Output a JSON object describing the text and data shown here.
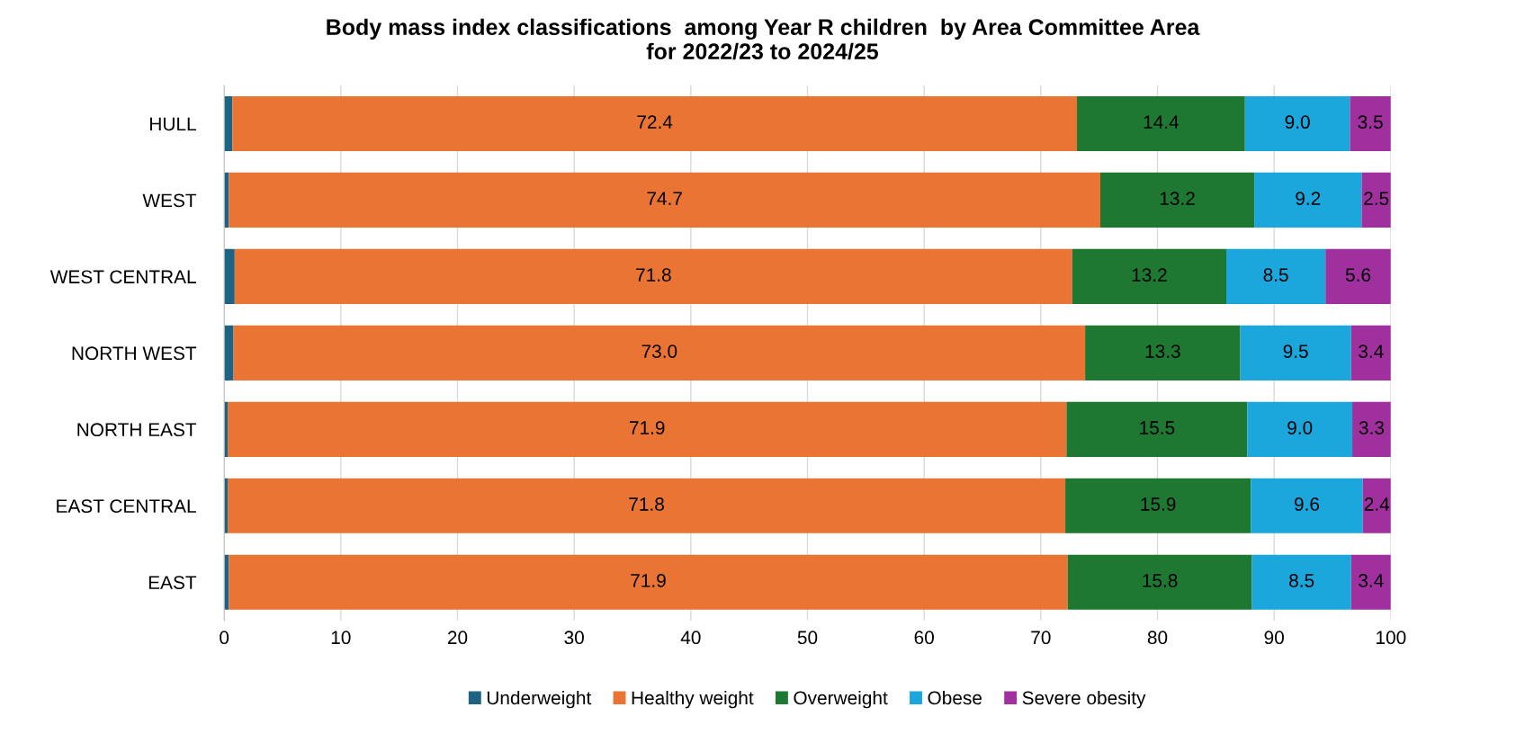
{
  "chart_data": {
    "type": "bar",
    "orientation": "horizontal",
    "stacked": true,
    "title": "Body mass index classifications  among Year R children  by Area Committee Area\nfor 2022/23 to 2024/25",
    "categories": [
      "HULL",
      "WEST",
      "WEST CENTRAL",
      "NORTH WEST",
      "NORTH EAST",
      "EAST CENTRAL",
      "EAST"
    ],
    "series": [
      {
        "name": "Underweight",
        "color": "#1f6384",
        "values": [
          0.7,
          0.4,
          0.9,
          0.8,
          0.3,
          0.3,
          0.4
        ],
        "value_labels": [
          null,
          null,
          null,
          null,
          null,
          null,
          null
        ]
      },
      {
        "name": "Healthy weight",
        "color": "#e97434",
        "values": [
          72.4,
          74.7,
          71.8,
          73.0,
          71.9,
          71.8,
          71.9
        ],
        "value_labels": [
          "72.4",
          "74.7",
          "71.8",
          "73.0",
          "71.9",
          "71.8",
          "71.9"
        ]
      },
      {
        "name": "Overweight",
        "color": "#1e7831",
        "values": [
          14.4,
          13.2,
          13.2,
          13.3,
          15.5,
          15.9,
          15.8
        ],
        "value_labels": [
          "14.4",
          "13.2",
          "13.2",
          "13.3",
          "15.5",
          "15.9",
          "15.8"
        ]
      },
      {
        "name": "Obese",
        "color": "#1ba6dc",
        "values": [
          9.0,
          9.2,
          8.5,
          9.5,
          9.0,
          9.6,
          8.5
        ],
        "value_labels": [
          "9.0",
          "9.2",
          "8.5",
          "9.5",
          "9.0",
          "9.6",
          "8.5"
        ]
      },
      {
        "name": "Severe obesity",
        "color": "#a1309f",
        "values": [
          3.5,
          2.5,
          5.6,
          3.4,
          3.3,
          2.4,
          3.4
        ],
        "value_labels": [
          "3.5",
          "2.5",
          "5.6",
          "3.4",
          "3.3",
          "2.4",
          "3.4"
        ]
      }
    ],
    "xlim": [
      0,
      100
    ],
    "xticks": [
      0,
      10,
      20,
      30,
      40,
      50,
      60,
      70,
      80,
      90,
      100
    ],
    "grid": "x",
    "legend": "bottom"
  }
}
